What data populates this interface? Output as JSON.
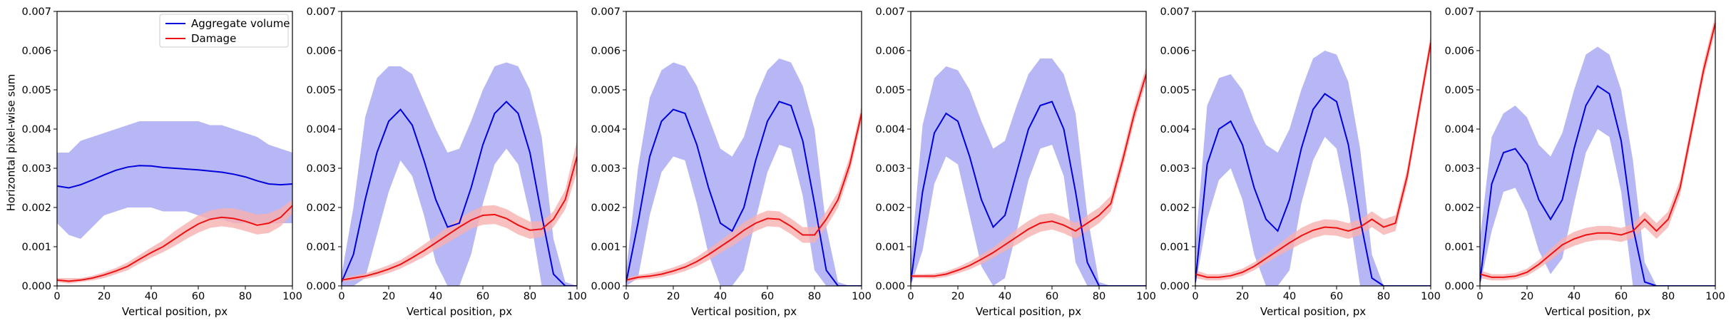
{
  "figure": {
    "ylabel": "Horizontal pixel-wise sum",
    "xlabel": "Vertical position, px",
    "xlim": [
      0,
      100
    ],
    "ylim": [
      0,
      0.007
    ],
    "xticks": [
      "0",
      "20",
      "40",
      "60",
      "80",
      "100"
    ],
    "yticks": [
      "0.000",
      "0.001",
      "0.002",
      "0.003",
      "0.004",
      "0.005",
      "0.006",
      "0.007"
    ],
    "colors": {
      "volume_line": "#0000dd",
      "volume_band": "#b3b3f6",
      "damage_line": "#ee1111",
      "damage_band": "#f8b0b0"
    },
    "legend": {
      "placement": "top-right of first panel",
      "entries": [
        "Aggregate volume",
        "Damage"
      ]
    }
  },
  "chart_data": [
    {
      "type": "line",
      "panel": 1,
      "x": [
        0,
        5,
        10,
        15,
        20,
        25,
        30,
        35,
        40,
        45,
        50,
        55,
        60,
        65,
        70,
        75,
        80,
        85,
        90,
        95,
        100
      ],
      "series": [
        {
          "name": "Aggregate volume",
          "values": [
            0.00255,
            0.0025,
            0.00258,
            0.0027,
            0.00283,
            0.00295,
            0.00303,
            0.00307,
            0.00306,
            0.00302,
            0.003,
            0.00298,
            0.00296,
            0.00293,
            0.0029,
            0.00285,
            0.00278,
            0.00268,
            0.0026,
            0.00258,
            0.0026
          ],
          "upper": [
            0.0034,
            0.0034,
            0.0037,
            0.0038,
            0.0039,
            0.004,
            0.0041,
            0.0042,
            0.0042,
            0.0042,
            0.0042,
            0.0042,
            0.0042,
            0.0041,
            0.0041,
            0.004,
            0.0039,
            0.0038,
            0.0036,
            0.0035,
            0.0034
          ],
          "lower": [
            0.0016,
            0.0013,
            0.0012,
            0.0015,
            0.0018,
            0.0019,
            0.002,
            0.002,
            0.002,
            0.0019,
            0.0019,
            0.0019,
            0.0018,
            0.0017,
            0.0017,
            0.0016,
            0.0016,
            0.0016,
            0.0016,
            0.0016,
            0.0016
          ]
        },
        {
          "name": "Damage",
          "values": [
            0.00015,
            0.00012,
            0.00015,
            0.0002,
            0.00028,
            0.00038,
            0.0005,
            0.00068,
            0.00085,
            0.001,
            0.0012,
            0.0014,
            0.00158,
            0.0017,
            0.00175,
            0.00172,
            0.00165,
            0.00155,
            0.0016,
            0.00175,
            0.00205
          ],
          "upper": [
            0.0002,
            0.0002,
            0.0002,
            0.00026,
            0.00035,
            0.00046,
            0.0006,
            0.00079,
            0.00098,
            0.00116,
            0.0014,
            0.0016,
            0.0018,
            0.00192,
            0.00198,
            0.00198,
            0.0019,
            0.00182,
            0.00185,
            0.00198,
            0.0022
          ],
          "lower": [
            0.0001,
            6e-05,
            0.0001,
            0.00014,
            0.0002,
            0.0003,
            0.0004,
            0.00057,
            0.00072,
            0.00086,
            0.00102,
            0.0012,
            0.00136,
            0.00148,
            0.00152,
            0.00148,
            0.0014,
            0.00131,
            0.00135,
            0.00152,
            0.00185
          ]
        }
      ]
    },
    {
      "type": "line",
      "panel": 2,
      "x": [
        0,
        5,
        10,
        15,
        20,
        25,
        30,
        35,
        40,
        45,
        50,
        55,
        60,
        65,
        70,
        75,
        80,
        85,
        90,
        95,
        100
      ],
      "series": [
        {
          "name": "Aggregate volume",
          "values": [
            0.0001,
            0.0008,
            0.0022,
            0.0034,
            0.0042,
            0.0045,
            0.0041,
            0.0032,
            0.0022,
            0.0015,
            0.0016,
            0.0025,
            0.0036,
            0.0044,
            0.0047,
            0.0044,
            0.0034,
            0.0018,
            0.0003,
            0.0,
            0.0
          ],
          "upper": [
            0.0003,
            0.002,
            0.0043,
            0.0053,
            0.0056,
            0.0056,
            0.0054,
            0.0047,
            0.004,
            0.0034,
            0.0035,
            0.0042,
            0.005,
            0.0056,
            0.0057,
            0.0056,
            0.005,
            0.0038,
            0.0012,
            0.0001,
            0.0
          ],
          "lower": [
            0.0,
            0.0,
            0.0002,
            0.0013,
            0.0024,
            0.0032,
            0.0028,
            0.0018,
            0.0006,
            0.0,
            0.0,
            0.0008,
            0.0021,
            0.0031,
            0.0035,
            0.0031,
            0.0018,
            0.0,
            0.0,
            0.0,
            0.0
          ]
        },
        {
          "name": "Damage",
          "values": [
            0.00015,
            0.0002,
            0.00025,
            0.00033,
            0.00043,
            0.00055,
            0.00072,
            0.0009,
            0.0011,
            0.0013,
            0.0015,
            0.00168,
            0.0018,
            0.00182,
            0.00172,
            0.00155,
            0.00142,
            0.00145,
            0.0017,
            0.0022,
            0.0033
          ],
          "upper": [
            0.0002,
            0.00026,
            0.00032,
            0.00042,
            0.00053,
            0.00066,
            0.00085,
            0.00106,
            0.00127,
            0.0015,
            0.00172,
            0.0019,
            0.00204,
            0.00206,
            0.00196,
            0.00179,
            0.00164,
            0.00165,
            0.0019,
            0.00245,
            0.0037
          ],
          "lower": [
            0.0001,
            0.00014,
            0.00018,
            0.00024,
            0.00033,
            0.00044,
            0.00059,
            0.00074,
            0.00093,
            0.0011,
            0.00128,
            0.00146,
            0.00156,
            0.00158,
            0.00148,
            0.00131,
            0.0012,
            0.00125,
            0.0015,
            0.00195,
            0.0029
          ]
        }
      ]
    },
    {
      "type": "line",
      "panel": 3,
      "x": [
        0,
        5,
        10,
        15,
        20,
        25,
        30,
        35,
        40,
        45,
        50,
        55,
        60,
        65,
        70,
        75,
        80,
        85,
        90,
        95,
        100
      ],
      "series": [
        {
          "name": "Aggregate volume",
          "values": [
            0.0001,
            0.0016,
            0.0033,
            0.0042,
            0.0045,
            0.0044,
            0.0036,
            0.0025,
            0.0016,
            0.0014,
            0.002,
            0.0032,
            0.0042,
            0.0047,
            0.0046,
            0.0037,
            0.0021,
            0.0004,
            0.0,
            0.0,
            0.0
          ],
          "upper": [
            0.0004,
            0.003,
            0.0048,
            0.0055,
            0.0057,
            0.0056,
            0.0051,
            0.0043,
            0.0035,
            0.0033,
            0.0038,
            0.0048,
            0.0055,
            0.0058,
            0.0057,
            0.0051,
            0.004,
            0.0015,
            0.0001,
            0.0,
            0.0
          ],
          "lower": [
            0.0,
            0.0002,
            0.0018,
            0.0029,
            0.0033,
            0.0032,
            0.0021,
            0.0008,
            0.0,
            0.0,
            0.0004,
            0.0017,
            0.0029,
            0.0036,
            0.0035,
            0.0023,
            0.0004,
            0.0,
            0.0,
            0.0,
            0.0
          ]
        },
        {
          "name": "Damage",
          "values": [
            0.00015,
            0.00022,
            0.00025,
            0.0003,
            0.00038,
            0.00048,
            0.00062,
            0.0008,
            0.001,
            0.0012,
            0.00142,
            0.0016,
            0.00172,
            0.0017,
            0.00152,
            0.0013,
            0.0013,
            0.0017,
            0.0022,
            0.0031,
            0.0044
          ],
          "upper": [
            0.0002,
            0.00028,
            0.00032,
            0.00038,
            0.00047,
            0.00058,
            0.00074,
            0.00094,
            0.00116,
            0.00138,
            0.00162,
            0.0018,
            0.00192,
            0.0019,
            0.00172,
            0.0015,
            0.0015,
            0.0019,
            0.0024,
            0.0033,
            0.0046
          ],
          "lower": [
            0.0001,
            0.00016,
            0.00018,
            0.00022,
            0.00029,
            0.00038,
            0.0005,
            0.00066,
            0.00084,
            0.00102,
            0.00122,
            0.0014,
            0.00152,
            0.0015,
            0.00132,
            0.0011,
            0.0011,
            0.0015,
            0.002,
            0.0029,
            0.0042
          ]
        }
      ]
    },
    {
      "type": "line",
      "panel": 4,
      "x": [
        0,
        5,
        10,
        15,
        20,
        25,
        30,
        35,
        40,
        45,
        50,
        55,
        60,
        65,
        70,
        75,
        80,
        85,
        90,
        95,
        100
      ],
      "series": [
        {
          "name": "Aggregate volume",
          "values": [
            0.0001,
            0.0024,
            0.0039,
            0.0044,
            0.0042,
            0.0033,
            0.0022,
            0.0015,
            0.0018,
            0.0029,
            0.004,
            0.0046,
            0.0047,
            0.004,
            0.0024,
            0.0006,
            0.0,
            0.0,
            0.0,
            0.0,
            0.0
          ],
          "upper": [
            0.0006,
            0.0041,
            0.0053,
            0.0056,
            0.0055,
            0.005,
            0.0042,
            0.0035,
            0.0037,
            0.0046,
            0.0054,
            0.0058,
            0.0058,
            0.0054,
            0.0044,
            0.0018,
            0.0001,
            0.0,
            0.0,
            0.0,
            0.0
          ],
          "lower": [
            0.0,
            0.0009,
            0.0026,
            0.0033,
            0.0031,
            0.0018,
            0.0005,
            0.0,
            0.0002,
            0.0014,
            0.0027,
            0.0035,
            0.0036,
            0.0028,
            0.0006,
            0.0,
            0.0,
            0.0,
            0.0,
            0.0,
            0.0
          ]
        },
        {
          "name": "Damage",
          "values": [
            0.00025,
            0.00025,
            0.00025,
            0.0003,
            0.0004,
            0.00052,
            0.00068,
            0.00085,
            0.00105,
            0.00125,
            0.00145,
            0.0016,
            0.00165,
            0.00155,
            0.0014,
            0.0016,
            0.0018,
            0.0021,
            0.0032,
            0.0044,
            0.0054
          ],
          "upper": [
            0.0003,
            0.0003,
            0.00031,
            0.00037,
            0.00048,
            0.00062,
            0.0008,
            0.00098,
            0.00121,
            0.00145,
            0.00166,
            0.00182,
            0.00186,
            0.00176,
            0.0016,
            0.0018,
            0.002,
            0.0023,
            0.0034,
            0.0046,
            0.0056
          ],
          "lower": [
            0.0002,
            0.0002,
            0.00019,
            0.00023,
            0.00032,
            0.00042,
            0.00056,
            0.00072,
            0.00089,
            0.00105,
            0.00124,
            0.00138,
            0.00144,
            0.00134,
            0.0012,
            0.0014,
            0.0016,
            0.0019,
            0.003,
            0.0042,
            0.0052
          ]
        }
      ]
    },
    {
      "type": "line",
      "panel": 5,
      "x": [
        0,
        5,
        10,
        15,
        20,
        25,
        30,
        35,
        40,
        45,
        50,
        55,
        60,
        65,
        70,
        75,
        80,
        85,
        90,
        95,
        100
      ],
      "series": [
        {
          "name": "Aggregate volume",
          "values": [
            0.0001,
            0.0031,
            0.004,
            0.0042,
            0.0036,
            0.0025,
            0.0017,
            0.0014,
            0.0022,
            0.0035,
            0.0045,
            0.0049,
            0.0047,
            0.0036,
            0.0017,
            0.0002,
            0.0,
            0.0,
            0.0,
            0.0,
            0.0
          ],
          "upper": [
            0.001,
            0.0046,
            0.0053,
            0.0054,
            0.005,
            0.0042,
            0.0036,
            0.0034,
            0.004,
            0.005,
            0.0058,
            0.006,
            0.0059,
            0.0052,
            0.0035,
            0.0008,
            0.0,
            0.0,
            0.0,
            0.0,
            0.0
          ],
          "lower": [
            0.0,
            0.0017,
            0.0027,
            0.003,
            0.0022,
            0.0008,
            0.0,
            0.0,
            0.0004,
            0.0021,
            0.0032,
            0.0038,
            0.0035,
            0.002,
            0.0,
            0.0,
            0.0,
            0.0,
            0.0,
            0.0,
            0.0
          ]
        },
        {
          "name": "Damage",
          "values": [
            0.0003,
            0.00022,
            0.00022,
            0.00026,
            0.00035,
            0.0005,
            0.0007,
            0.0009,
            0.0011,
            0.00128,
            0.00142,
            0.0015,
            0.00148,
            0.0014,
            0.0015,
            0.0017,
            0.0015,
            0.0016,
            0.0028,
            0.0045,
            0.0062
          ],
          "upper": [
            0.0004,
            0.0003,
            0.0003,
            0.00034,
            0.00044,
            0.0006,
            0.00082,
            0.00104,
            0.00128,
            0.00148,
            0.00162,
            0.0017,
            0.00168,
            0.0016,
            0.0017,
            0.0019,
            0.0017,
            0.0018,
            0.003,
            0.0047,
            0.0064
          ],
          "lower": [
            0.0002,
            0.00014,
            0.00014,
            0.00018,
            0.00026,
            0.0004,
            0.00058,
            0.00076,
            0.00092,
            0.00108,
            0.00122,
            0.0013,
            0.00128,
            0.0012,
            0.0013,
            0.0015,
            0.0013,
            0.0014,
            0.0026,
            0.0043,
            0.006
          ]
        }
      ]
    },
    {
      "type": "line",
      "panel": 6,
      "x": [
        0,
        5,
        10,
        15,
        20,
        25,
        30,
        35,
        40,
        45,
        50,
        55,
        60,
        65,
        70,
        75,
        80,
        85,
        90,
        95,
        100
      ],
      "series": [
        {
          "name": "Aggregate volume",
          "values": [
            0.0001,
            0.0026,
            0.0034,
            0.0035,
            0.0031,
            0.0022,
            0.0017,
            0.0022,
            0.0035,
            0.0046,
            0.0051,
            0.0049,
            0.0037,
            0.0015,
            0.0001,
            0.0,
            0.0,
            0.0,
            0.0,
            0.0,
            0.0
          ],
          "upper": [
            0.0012,
            0.0038,
            0.0044,
            0.0046,
            0.0043,
            0.0036,
            0.0033,
            0.0039,
            0.005,
            0.0059,
            0.0061,
            0.0059,
            0.005,
            0.0032,
            0.0006,
            0.0,
            0.0,
            0.0,
            0.0,
            0.0,
            0.0
          ],
          "lower": [
            0.0,
            0.0014,
            0.0024,
            0.0025,
            0.0019,
            0.0009,
            0.0003,
            0.0007,
            0.0021,
            0.0034,
            0.004,
            0.0038,
            0.0024,
            0.0,
            0.0,
            0.0,
            0.0,
            0.0,
            0.0,
            0.0,
            0.0
          ]
        },
        {
          "name": "Damage",
          "values": [
            0.0003,
            0.00022,
            0.00022,
            0.00025,
            0.00035,
            0.00055,
            0.0008,
            0.00105,
            0.0012,
            0.0013,
            0.00135,
            0.00135,
            0.0013,
            0.0014,
            0.0017,
            0.0014,
            0.0017,
            0.0025,
            0.004,
            0.0055,
            0.0067
          ],
          "upper": [
            0.0004,
            0.0003,
            0.0003,
            0.00033,
            0.00044,
            0.00066,
            0.00094,
            0.00121,
            0.00138,
            0.00148,
            0.00153,
            0.00153,
            0.00148,
            0.00158,
            0.0019,
            0.0016,
            0.0019,
            0.0027,
            0.0042,
            0.0057,
            0.0069
          ],
          "lower": [
            0.0002,
            0.00014,
            0.00014,
            0.00017,
            0.00026,
            0.00044,
            0.00066,
            0.00089,
            0.00102,
            0.00112,
            0.00117,
            0.00117,
            0.00112,
            0.00122,
            0.0015,
            0.0012,
            0.0015,
            0.0023,
            0.0038,
            0.0053,
            0.0065
          ]
        }
      ]
    }
  ]
}
